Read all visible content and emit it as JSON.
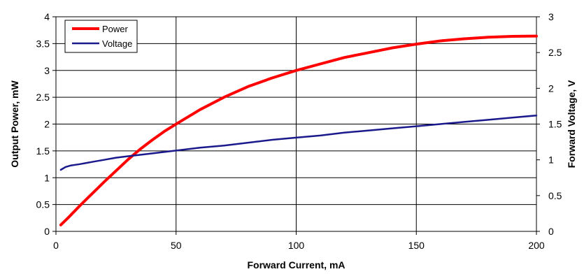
{
  "chart_data": {
    "type": "line",
    "title": "",
    "xlabel": "Forward Current, mA",
    "ylabel": "Output Power, mW",
    "y2label": "Forward Voltage, V",
    "xlim": [
      0,
      200
    ],
    "ylim": [
      0,
      4
    ],
    "y2lim": [
      0,
      3
    ],
    "x_ticks": [
      "0",
      "50",
      "100",
      "150",
      "200"
    ],
    "y_ticks": [
      "0",
      "0.5",
      "1",
      "1.5",
      "2",
      "2.5",
      "3",
      "3.5",
      "4"
    ],
    "y2_ticks": [
      "0",
      "0.5",
      "1",
      "1.5",
      "2",
      "2.5",
      "3"
    ],
    "grid": true,
    "legend_position": "top-left",
    "series": [
      {
        "name": "Power",
        "axis": "left",
        "color": "#ff0000",
        "x": [
          2,
          5,
          10,
          15,
          20,
          25,
          30,
          35,
          40,
          45,
          50,
          60,
          70,
          80,
          90,
          100,
          110,
          120,
          130,
          140,
          150,
          160,
          170,
          180,
          190,
          200
        ],
        "y": [
          0.12,
          0.25,
          0.48,
          0.7,
          0.92,
          1.13,
          1.34,
          1.53,
          1.7,
          1.86,
          2.0,
          2.27,
          2.5,
          2.7,
          2.86,
          3.0,
          3.12,
          3.24,
          3.33,
          3.42,
          3.49,
          3.55,
          3.59,
          3.62,
          3.635,
          3.64
        ]
      },
      {
        "name": "Voltage",
        "axis": "right",
        "color": "#1a1a8c",
        "x": [
          2,
          4,
          6,
          8,
          10,
          15,
          20,
          25,
          30,
          40,
          50,
          60,
          70,
          80,
          90,
          100,
          110,
          120,
          130,
          140,
          150,
          160,
          170,
          180,
          190,
          200
        ],
        "y": [
          0.86,
          0.9,
          0.92,
          0.93,
          0.94,
          0.97,
          1.0,
          1.03,
          1.05,
          1.09,
          1.13,
          1.17,
          1.2,
          1.24,
          1.28,
          1.31,
          1.34,
          1.38,
          1.41,
          1.44,
          1.47,
          1.5,
          1.53,
          1.56,
          1.59,
          1.62
        ]
      }
    ]
  }
}
